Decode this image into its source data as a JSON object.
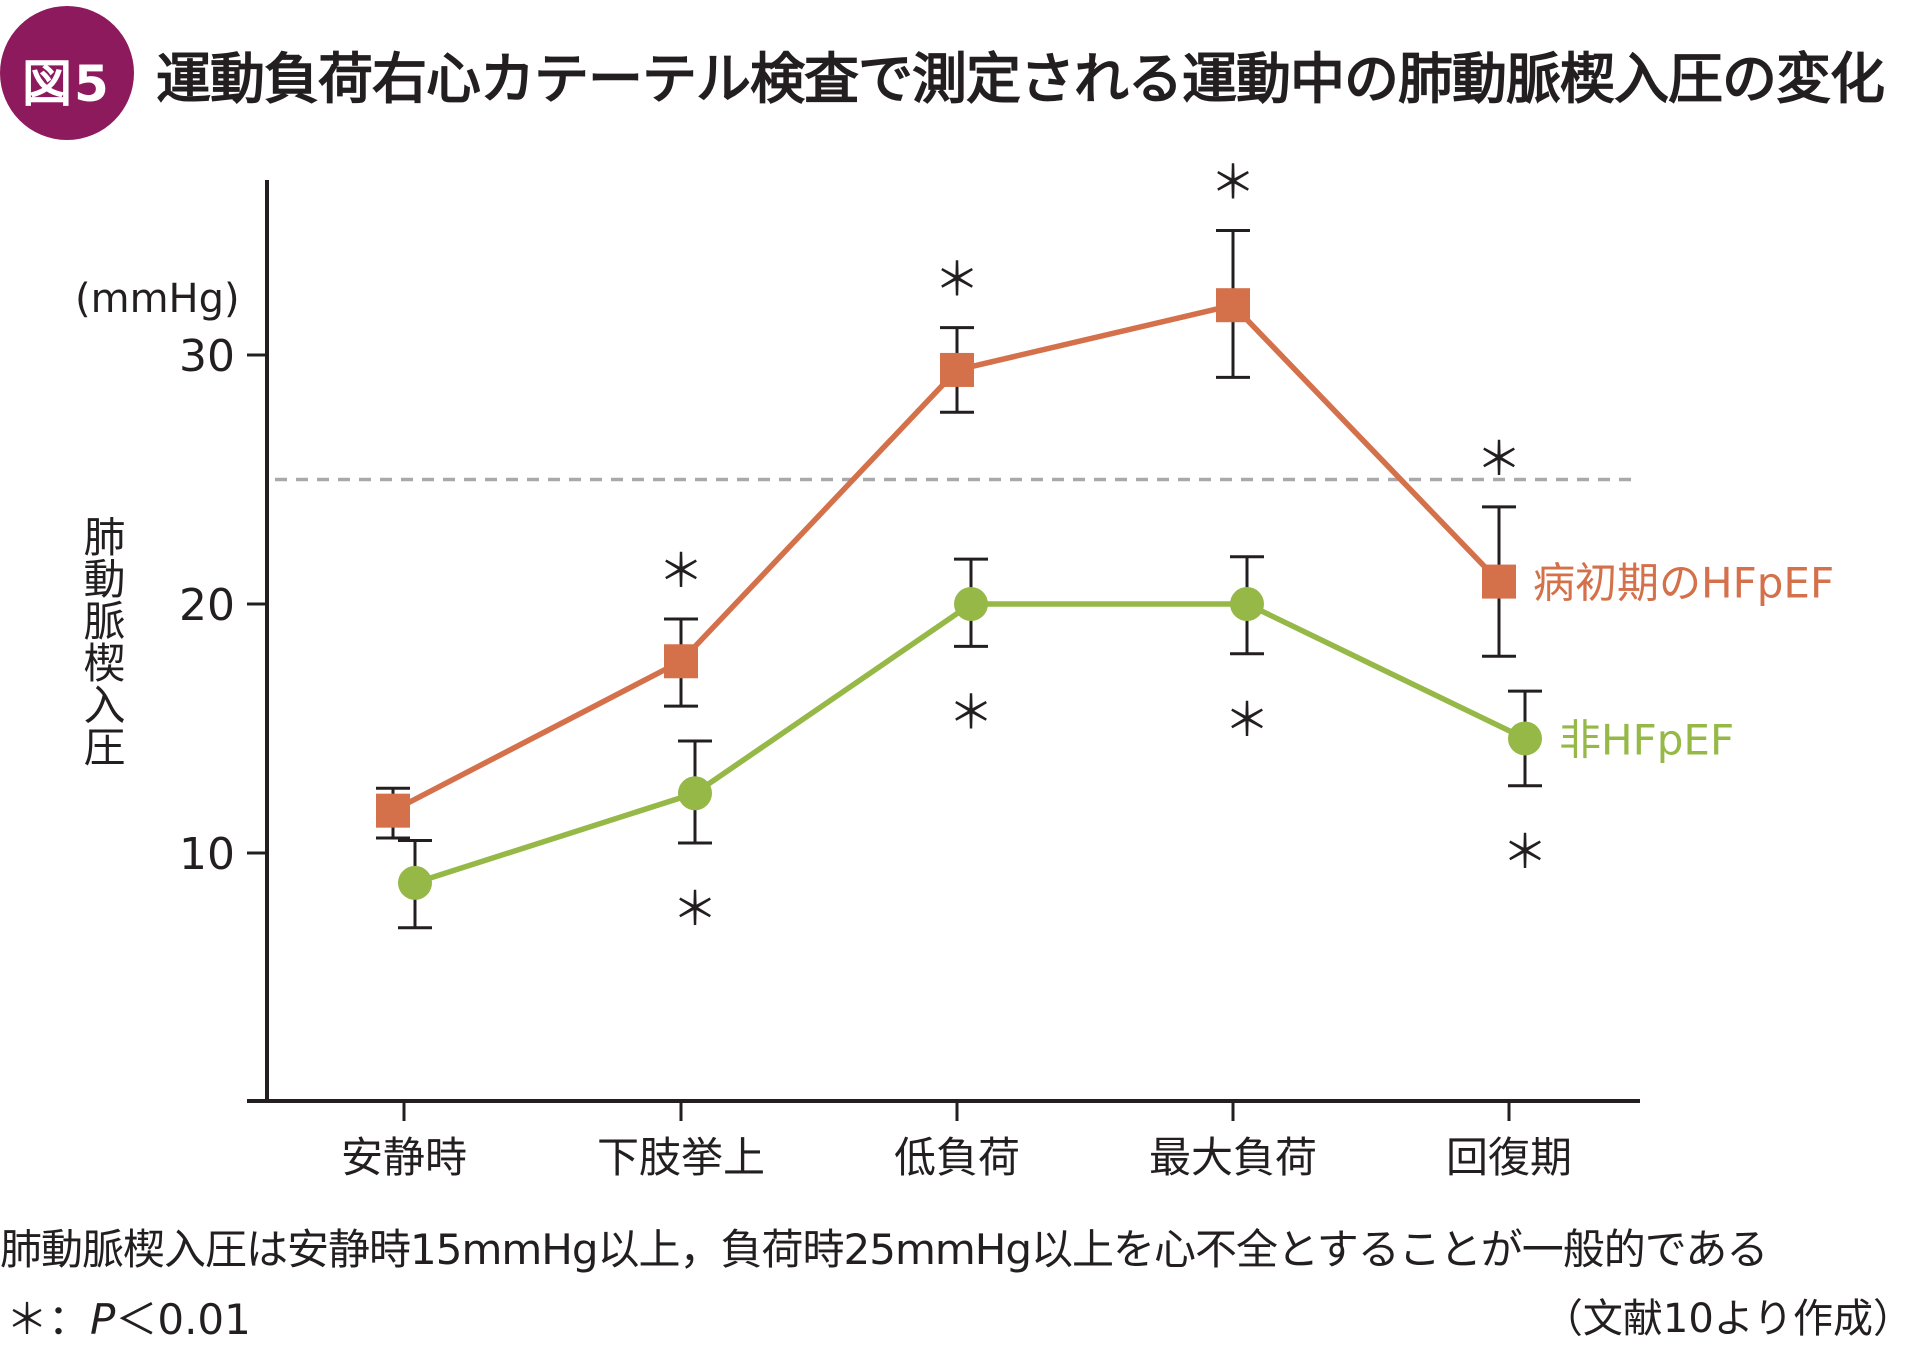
{
  "figure": {
    "badge": "図5",
    "title": "運動負荷右心カテーテル検査で測定される運動中の肺動脈楔入圧の変化",
    "note": "肺動脈楔入圧は安静時15mmHg以上，負荷時25mmHg以上を心不全とすることが一般的である",
    "significance_symbol": "＊：",
    "significance_p": "P",
    "significance_rest": "＜0.01",
    "source": "（文献10より作成）"
  },
  "chart_data": {
    "type": "line",
    "title": "運動負荷右心カテーテル検査で測定される運動中の肺動脈楔入圧の変化",
    "xlabel": "",
    "ylabel": "肺動脈楔入圧",
    "yunit": "(mmHg)",
    "ylim": [
      0,
      37
    ],
    "yticks": [
      10,
      20,
      30
    ],
    "ytick_labels": [
      "10",
      "20",
      "30"
    ],
    "grid": false,
    "categories": [
      "安静時",
      "下肢挙上",
      "低負荷",
      "最大負荷",
      "回復期"
    ],
    "reference_line": {
      "value": 25,
      "style": "dashed",
      "color": "#a7a9ac"
    },
    "series": [
      {
        "name": "病初期のHFpEF",
        "marker": "square",
        "color": "#d4704a",
        "values": [
          11.7,
          17.7,
          29.4,
          32.0,
          20.9
        ],
        "error_upper": [
          12.6,
          19.4,
          31.1,
          35.0,
          23.9
        ],
        "error_lower": [
          10.6,
          15.9,
          27.7,
          29.1,
          17.9
        ],
        "significant": [
          false,
          true,
          true,
          true,
          true
        ],
        "sig_position": "above"
      },
      {
        "name": "非HFpEF",
        "marker": "circle",
        "color": "#95b847",
        "values": [
          8.8,
          12.4,
          20.0,
          20.0,
          14.6
        ],
        "error_upper": [
          10.5,
          14.5,
          21.8,
          21.9,
          16.5
        ],
        "error_lower": [
          7.0,
          10.4,
          18.3,
          18.0,
          12.7
        ],
        "significant": [
          false,
          true,
          true,
          true,
          true
        ],
        "sig_position": "below"
      }
    ],
    "significance_mark": "＊",
    "legend": "inline-right"
  }
}
